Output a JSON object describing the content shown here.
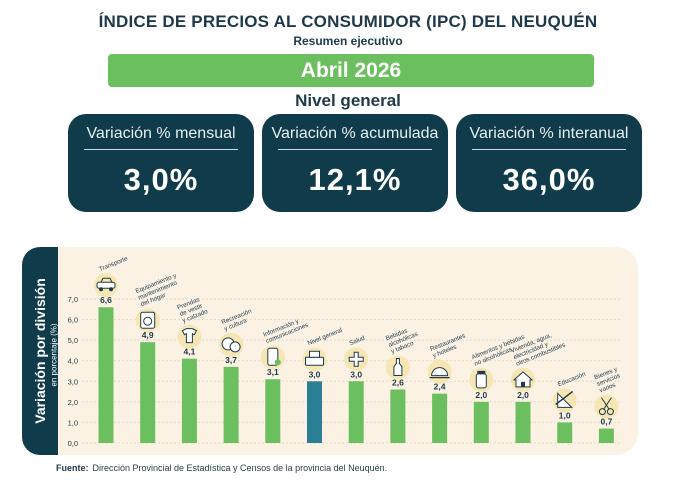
{
  "header": {
    "title": "ÍNDICE DE PRECIOS AL CONSUMIDOR (IPC) DEL NEUQUÉN",
    "subtitle": "Resumen ejecutivo",
    "period": "Abril 2026",
    "level": "Nivel general"
  },
  "cards": [
    {
      "label": "Variación % mensual",
      "value": "3,0%"
    },
    {
      "label": "Variación % acumulada",
      "value": "12,1%"
    },
    {
      "label": "Variación % interanual",
      "value": "36,0%"
    }
  ],
  "side": {
    "title": "Variación por división",
    "subtitle": "en porcentaje (%)"
  },
  "colors": {
    "navy": "#0f3b4b",
    "bar": "#6cbf5e",
    "highlight": "#2b7f94",
    "panel": "#fbf2e4",
    "icon_bg": "#f6e6b4"
  },
  "chart_data": {
    "type": "bar",
    "ylim": [
      0,
      7
    ],
    "yticks": [
      "0,0",
      "1,0",
      "2,0",
      "3,0",
      "4,0",
      "5,0",
      "6,0",
      "7,0"
    ],
    "grid": true,
    "highlight_index": 5,
    "categories": [
      {
        "lines": [
          "Transporte"
        ],
        "icon": "car-icon"
      },
      {
        "lines": [
          "Equipamiento y",
          "mantenimiento",
          "del hogar"
        ],
        "icon": "washing-machine-icon"
      },
      {
        "lines": [
          "Prendas",
          "de vestir",
          "y calzado"
        ],
        "icon": "shirt-shoe-icon"
      },
      {
        "lines": [
          "Recreación",
          "y cultura"
        ],
        "icon": "theater-masks-icon"
      },
      {
        "lines": [
          "Información y",
          "comunicaciones"
        ],
        "icon": "smartphone-icon"
      },
      {
        "lines": [
          "Nivel general"
        ],
        "icon": "cash-register-icon"
      },
      {
        "lines": [
          "Salud"
        ],
        "icon": "health-cross-icon"
      },
      {
        "lines": [
          "Bebidas",
          "alcohólicas",
          "y tabaco"
        ],
        "icon": "wine-bottle-icon"
      },
      {
        "lines": [
          "Restaurantes",
          "y hoteles"
        ],
        "icon": "cloche-icon"
      },
      {
        "lines": [
          "Alimentos y bebidas",
          "no alcohólicas"
        ],
        "icon": "jar-icon"
      },
      {
        "lines": [
          "Vivienda, agua,",
          "electricidad y",
          "otros combustibles"
        ],
        "icon": "house-icon"
      },
      {
        "lines": [
          "Educación"
        ],
        "icon": "ruler-triangle-icon"
      },
      {
        "lines": [
          "Bienes y",
          "servicios",
          "varios"
        ],
        "icon": "scissors-icon"
      }
    ],
    "values": [
      6.6,
      4.9,
      4.1,
      3.7,
      3.1,
      3.0,
      3.0,
      2.6,
      2.4,
      2.0,
      2.0,
      1.0,
      0.7
    ],
    "value_labels": [
      "6,6",
      "4,9",
      "4,1",
      "3,7",
      "3,1",
      "3,0",
      "3,0",
      "2,6",
      "2,4",
      "2,0",
      "2,0",
      "1,0",
      "0,7"
    ]
  },
  "footer": {
    "source_label": "Fuente:",
    "source_text": "Dirección Provincial de Estadística y Censos de la provincia del Neuquén."
  }
}
